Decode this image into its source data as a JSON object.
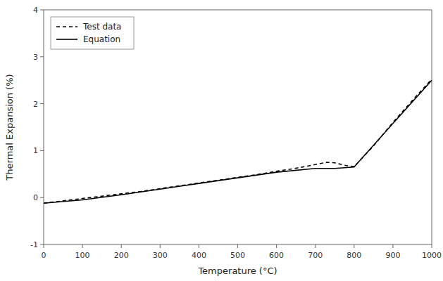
{
  "chart_data": {
    "type": "line",
    "xlabel": "Temperature (°C)",
    "ylabel": "Thermal Expansion (%)",
    "xlim": [
      0,
      1000
    ],
    "ylim": [
      -1,
      4
    ],
    "xticks": [
      0,
      100,
      200,
      300,
      400,
      500,
      600,
      700,
      800,
      900,
      1000
    ],
    "yticks": [
      -1,
      0,
      1,
      2,
      3,
      4
    ],
    "grid": false,
    "legend": "upper left",
    "series": [
      {
        "name": "Test data",
        "color": "#000000",
        "line_style": "dashed",
        "x": [
          0,
          50,
          100,
          150,
          200,
          250,
          300,
          350,
          400,
          450,
          500,
          550,
          600,
          640,
          680,
          710,
          730,
          750,
          760,
          770,
          780,
          800,
          850,
          900,
          950,
          1000
        ],
        "values": [
          -0.12,
          -0.07,
          -0.02,
          0.03,
          0.08,
          0.13,
          0.19,
          0.25,
          0.31,
          0.37,
          0.43,
          0.49,
          0.56,
          0.61,
          0.67,
          0.72,
          0.75,
          0.74,
          0.72,
          0.7,
          0.68,
          0.66,
          1.1,
          1.6,
          2.07,
          2.52
        ]
      },
      {
        "name": "Equation",
        "color": "#000000",
        "line_style": "solid",
        "x": [
          0,
          100,
          200,
          300,
          400,
          500,
          600,
          700,
          750,
          800,
          900,
          1000
        ],
        "values": [
          -0.12,
          -0.05,
          0.06,
          0.18,
          0.3,
          0.42,
          0.54,
          0.62,
          0.62,
          0.65,
          1.58,
          2.5
        ]
      }
    ]
  }
}
